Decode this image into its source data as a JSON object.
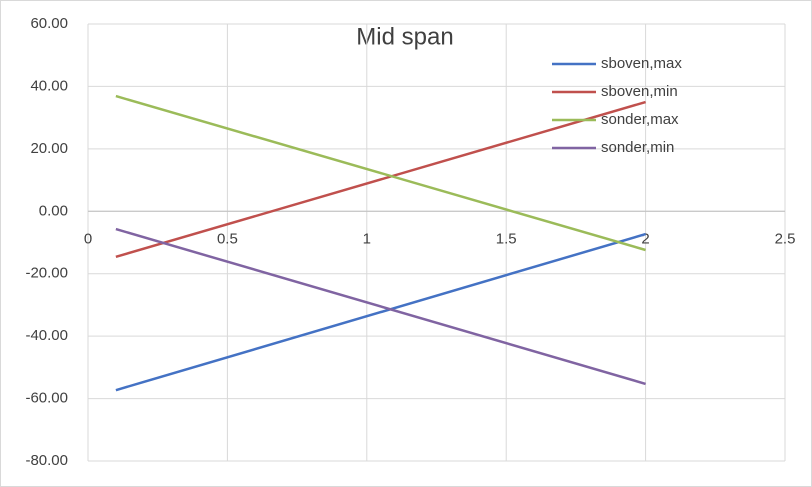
{
  "chart_data": {
    "type": "line",
    "title": "Mid span",
    "x": [
      0.1,
      2
    ],
    "series": [
      {
        "name": "sboven,max",
        "color": "#4472c4",
        "values": [
          -57.3,
          -7.3
        ]
      },
      {
        "name": "sboven,min",
        "color": "#c0504d",
        "values": [
          -14.6,
          35.0
        ]
      },
      {
        "name": "sonder,max",
        "color": "#9bbb59",
        "values": [
          36.9,
          -12.4
        ]
      },
      {
        "name": "sonder,min",
        "color": "#8064a2",
        "values": [
          -5.7,
          -55.3
        ]
      }
    ],
    "xlim": [
      0,
      2.5
    ],
    "xticks": [
      0,
      0.5,
      1,
      1.5,
      2,
      2.5
    ],
    "ylim": [
      -80,
      60
    ],
    "yticks": [
      {
        "value": -80,
        "label": "-80.00"
      },
      {
        "value": -60,
        "label": "-60.00"
      },
      {
        "value": -40,
        "label": "-40.00"
      },
      {
        "value": -20,
        "label": "-20.00"
      },
      {
        "value": 0,
        "label": "0.00"
      },
      {
        "value": 20,
        "label": "20.00"
      },
      {
        "value": 40,
        "label": "40.00"
      },
      {
        "value": 60,
        "label": "60.00"
      }
    ],
    "grid": true,
    "legend": "right"
  }
}
